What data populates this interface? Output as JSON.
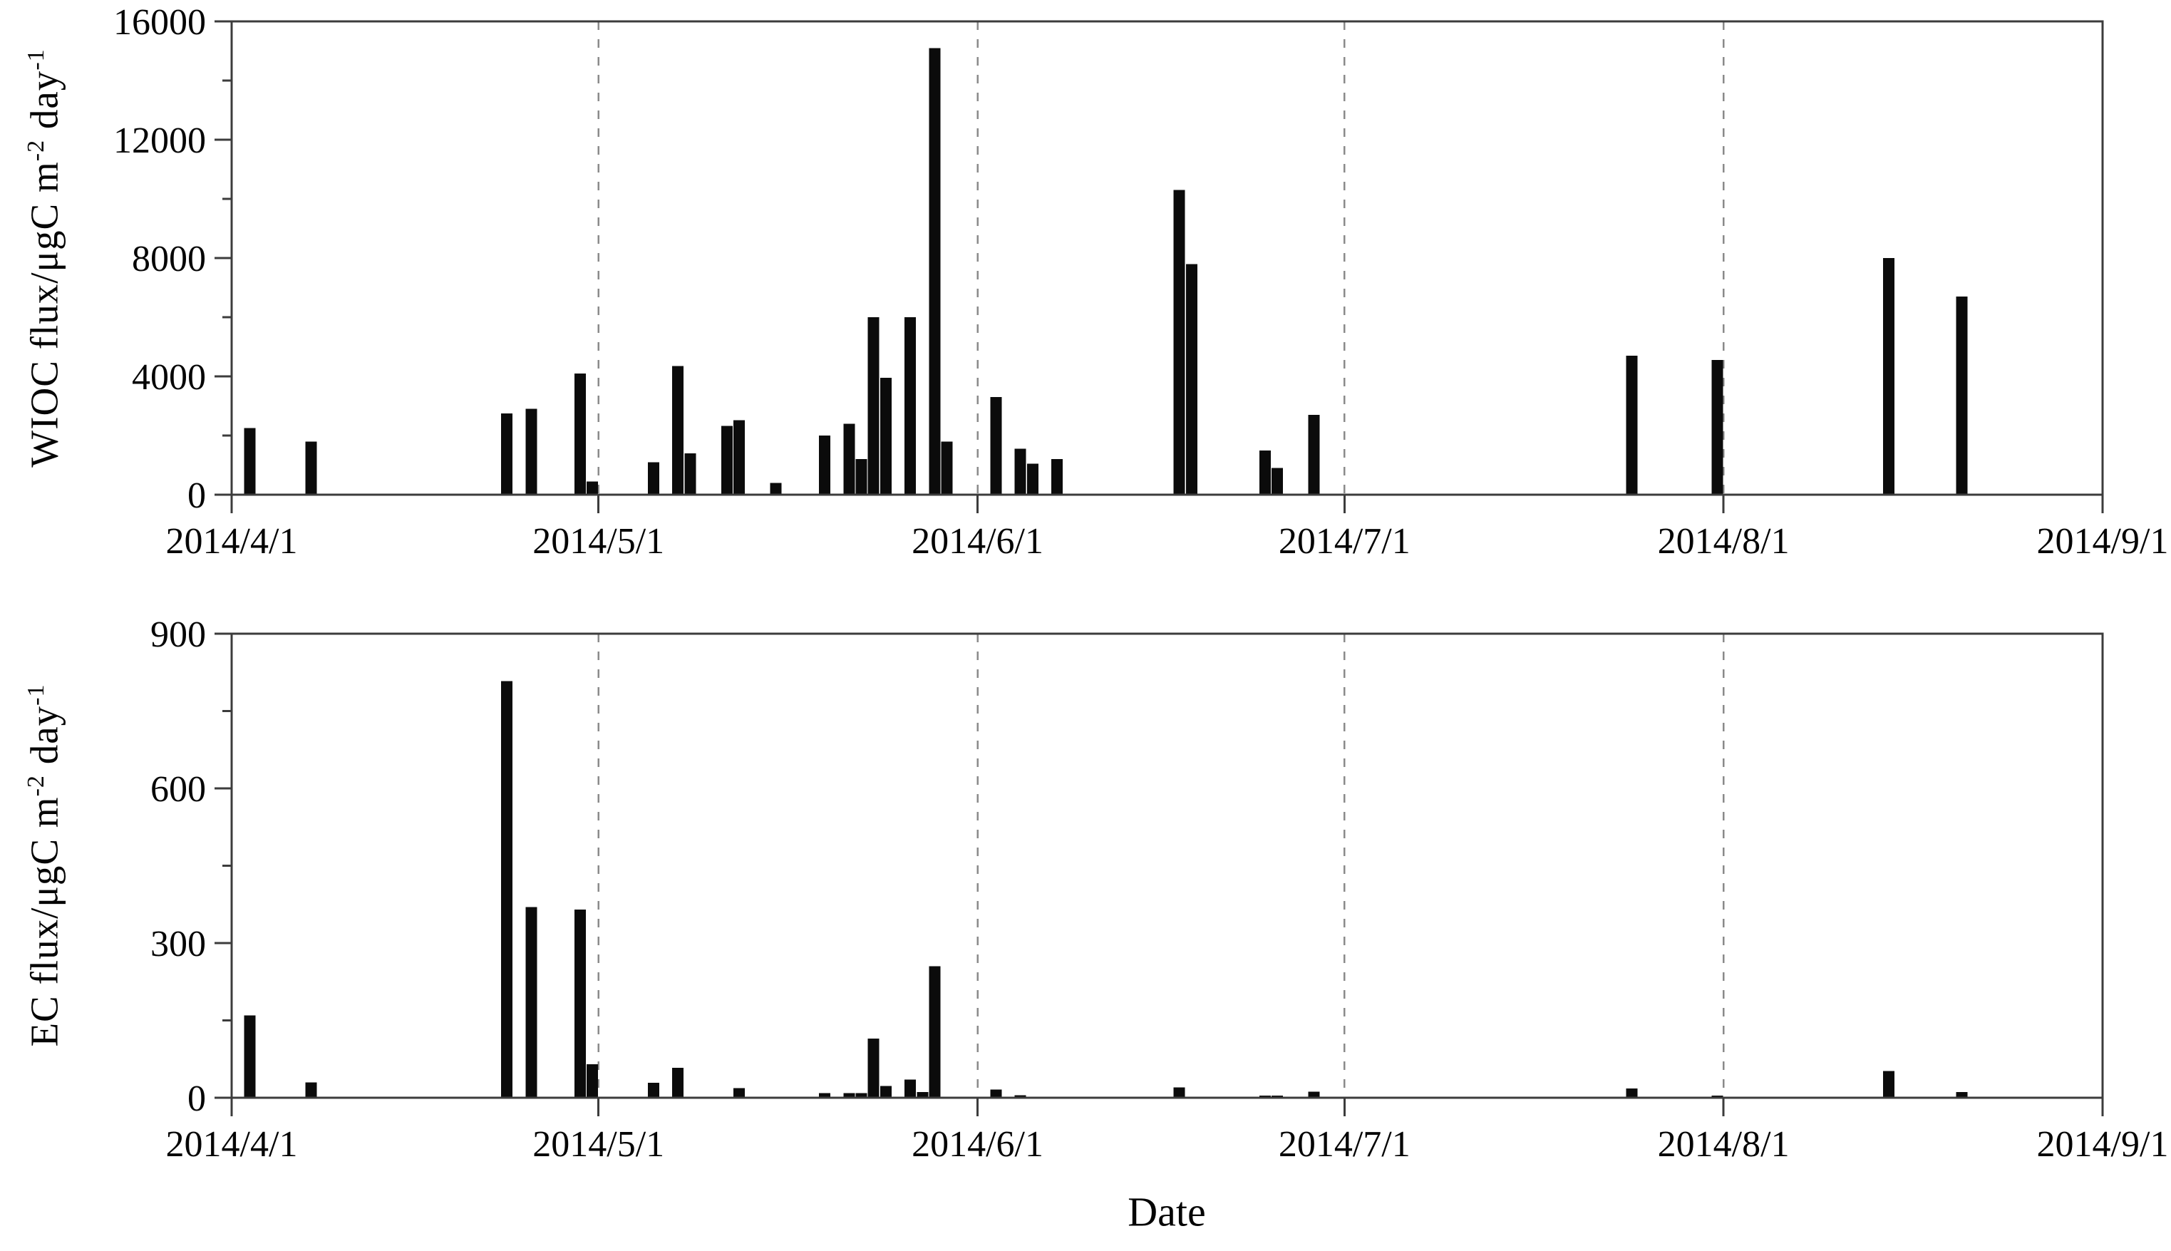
{
  "figure_title": "",
  "xlabel": "Date",
  "accent_colors": {
    "bar": "#0b0b0b",
    "axis": "#3c3c3c",
    "gridline": "#8a8a8a",
    "background": "#ffffff"
  },
  "chart_data": [
    {
      "type": "bar",
      "panel": "WIOC",
      "ylabel_main": "WIOC flux/μgC m",
      "ylabel_sup1": "-2",
      "ylabel_mid": " day",
      "ylabel_sup2": "-1",
      "ylabel_plain": "WIOC flux/μgC m-2 day-1",
      "xlabel": "",
      "ylim": [
        0,
        16000
      ],
      "ytick_values": [
        0,
        4000,
        8000,
        12000,
        16000
      ],
      "ytick_labels": [
        "0",
        "4000",
        "8000",
        "12000",
        "16000"
      ],
      "y_minor_step": 2000,
      "x_range": [
        "2014/4/1",
        "2014/9/1"
      ],
      "xtick_labels": [
        "2014/4/1",
        "2014/5/1",
        "2014/6/1",
        "2014/7/1",
        "2014/8/1",
        "2014/9/1"
      ],
      "gridlines_at": [
        "2014/5/1",
        "2014/6/1",
        "2014/7/1",
        "2014/8/1"
      ],
      "grid_style": "vertical-dashed",
      "legend": "none",
      "bars": [
        [
          "2014/4/2",
          2250
        ],
        [
          "2014/4/7",
          1800
        ],
        [
          "2014/4/23",
          2750
        ],
        [
          "2014/4/25",
          2900
        ],
        [
          "2014/4/29",
          4100
        ],
        [
          "2014/4/30",
          450
        ],
        [
          "2014/5/5",
          1100
        ],
        [
          "2014/5/7",
          4350
        ],
        [
          "2014/5/8",
          1400
        ],
        [
          "2014/5/11",
          2330
        ],
        [
          "2014/5/12",
          2520
        ],
        [
          "2014/5/15",
          400
        ],
        [
          "2014/5/19",
          2000
        ],
        [
          "2014/5/21",
          2400
        ],
        [
          "2014/5/22",
          1200
        ],
        [
          "2014/5/23",
          6000
        ],
        [
          "2014/5/24",
          3950
        ],
        [
          "2014/5/26",
          6000
        ],
        [
          "2014/5/28",
          15100
        ],
        [
          "2014/5/29",
          1800
        ],
        [
          "2014/6/2",
          3300
        ],
        [
          "2014/6/4",
          1550
        ],
        [
          "2014/6/5",
          1050
        ],
        [
          "2014/6/7",
          1200
        ],
        [
          "2014/6/17",
          10300
        ],
        [
          "2014/6/18",
          7800
        ],
        [
          "2014/6/24",
          1500
        ],
        [
          "2014/6/25",
          900
        ],
        [
          "2014/6/28",
          2700
        ],
        [
          "2014/7/24",
          4700
        ],
        [
          "2014/7/31",
          4550
        ],
        [
          "2014/8/14",
          8000
        ],
        [
          "2014/8/20",
          6700
        ]
      ]
    },
    {
      "type": "bar",
      "panel": "EC",
      "ylabel_main": "EC flux/μgC m",
      "ylabel_sup1": "-2",
      "ylabel_mid": " day",
      "ylabel_sup2": "-1",
      "ylabel_plain": "EC flux/μgC m-2 day-1",
      "xlabel": "Date",
      "ylim": [
        0,
        900
      ],
      "ytick_values": [
        0,
        300,
        600,
        900
      ],
      "ytick_labels": [
        "0",
        "300",
        "600",
        "900"
      ],
      "y_minor_step": 150,
      "x_range": [
        "2014/4/1",
        "2014/9/1"
      ],
      "xtick_labels": [
        "2014/4/1",
        "2014/5/1",
        "2014/6/1",
        "2014/7/1",
        "2014/8/1",
        "2014/9/1"
      ],
      "gridlines_at": [
        "2014/5/1",
        "2014/6/1",
        "2014/7/1",
        "2014/8/1"
      ],
      "grid_style": "vertical-dashed",
      "legend": "none",
      "bars": [
        [
          "2014/4/2",
          160
        ],
        [
          "2014/4/7",
          30
        ],
        [
          "2014/4/23",
          808
        ],
        [
          "2014/4/25",
          370
        ],
        [
          "2014/4/29",
          365
        ],
        [
          "2014/4/30",
          65
        ],
        [
          "2014/5/5",
          29
        ],
        [
          "2014/5/7",
          58
        ],
        [
          "2014/5/12",
          19
        ],
        [
          "2014/5/19",
          9
        ],
        [
          "2014/5/21",
          9
        ],
        [
          "2014/5/22",
          9
        ],
        [
          "2014/5/23",
          115
        ],
        [
          "2014/5/24",
          23
        ],
        [
          "2014/5/26",
          35
        ],
        [
          "2014/5/27",
          11
        ],
        [
          "2014/5/28",
          255
        ],
        [
          "2014/6/2",
          16
        ],
        [
          "2014/6/4",
          5
        ],
        [
          "2014/6/17",
          20
        ],
        [
          "2014/6/24",
          4
        ],
        [
          "2014/6/25",
          4
        ],
        [
          "2014/6/28",
          12
        ],
        [
          "2014/7/24",
          18
        ],
        [
          "2014/7/31",
          4
        ],
        [
          "2014/8/14",
          52
        ],
        [
          "2014/8/20",
          11
        ]
      ]
    }
  ]
}
